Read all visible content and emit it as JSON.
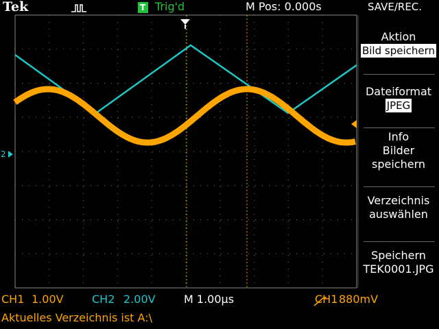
{
  "header": {
    "brand": "Tek",
    "trigger_icon": "T",
    "trigger_status": "Trig'd",
    "m_pos": "M Pos: 0.000s",
    "menu_title": "SAVE/REC."
  },
  "markers": {
    "ch2": "2"
  },
  "menu": [
    {
      "lines": [
        "Aktion"
      ],
      "value": "Bild speichern"
    },
    {
      "lines": [
        "Dateiformat"
      ],
      "value": "JPEG"
    },
    {
      "lines": [
        "Info",
        "Bilder",
        "speichern"
      ]
    },
    {
      "lines": [
        "Verzeichnis",
        "auswählen"
      ]
    },
    {
      "lines": [
        "Speichern",
        "TEK0001.JPG"
      ]
    }
  ],
  "footer": {
    "ch1": "CH1",
    "ch1_scale": "1.00V",
    "ch2": "CH2",
    "ch2_scale": "2.00V",
    "timebase": "M 1.00µs",
    "trigger_source": "CH1",
    "trigger_level": "880mV",
    "message": "Aktuelles Verzeichnis ist A:\\"
  }
}
